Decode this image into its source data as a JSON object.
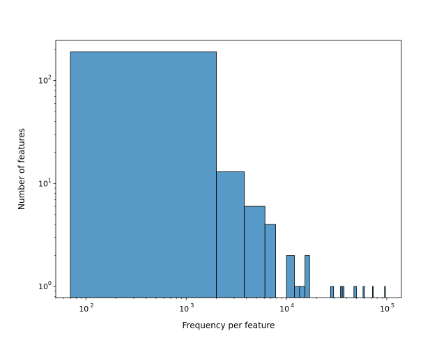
{
  "chart_data": {
    "type": "bar",
    "title": "",
    "xlabel": "Frequency per feature",
    "ylabel": "Number of features",
    "xscale": "log",
    "yscale": "log",
    "xlim": [
      50,
      140000
    ],
    "ylim": [
      0.78,
      245
    ],
    "grid": false,
    "legend": "none",
    "bar_color": "#5799c7",
    "edge_color": "#000000",
    "x_ticks": [
      {
        "value": 100,
        "label": "10",
        "exp": "2"
      },
      {
        "value": 1000,
        "label": "10",
        "exp": "3"
      },
      {
        "value": 10000,
        "label": "10",
        "exp": "4"
      },
      {
        "value": 100000,
        "label": "10",
        "exp": "5"
      }
    ],
    "y_ticks": [
      {
        "value": 1,
        "label": "10",
        "exp": "0"
      },
      {
        "value": 10,
        "label": "10",
        "exp": "1"
      },
      {
        "value": 100,
        "label": "10",
        "exp": "2"
      }
    ],
    "bins": [
      {
        "x0": 70,
        "x1": 2000,
        "count": 190
      },
      {
        "x0": 2000,
        "x1": 3800,
        "count": 13
      },
      {
        "x0": 3800,
        "x1": 6100,
        "count": 6
      },
      {
        "x0": 6100,
        "x1": 7800,
        "count": 4
      },
      {
        "x0": 10000,
        "x1": 12000,
        "count": 2
      },
      {
        "x0": 12000,
        "x1": 13500,
        "count": 1
      },
      {
        "x0": 13500,
        "x1": 15300,
        "count": 1
      },
      {
        "x0": 15300,
        "x1": 17000,
        "count": 2
      },
      {
        "x0": 27500,
        "x1": 29500,
        "count": 1
      },
      {
        "x0": 34500,
        "x1": 36000,
        "count": 1
      },
      {
        "x0": 36000,
        "x1": 37500,
        "count": 1
      },
      {
        "x0": 47000,
        "x1": 50000,
        "count": 1
      },
      {
        "x0": 58000,
        "x1": 60000,
        "count": 1
      },
      {
        "x0": 72000,
        "x1": 73500,
        "count": 1
      },
      {
        "x0": 95000,
        "x1": 97000,
        "count": 1
      }
    ]
  }
}
